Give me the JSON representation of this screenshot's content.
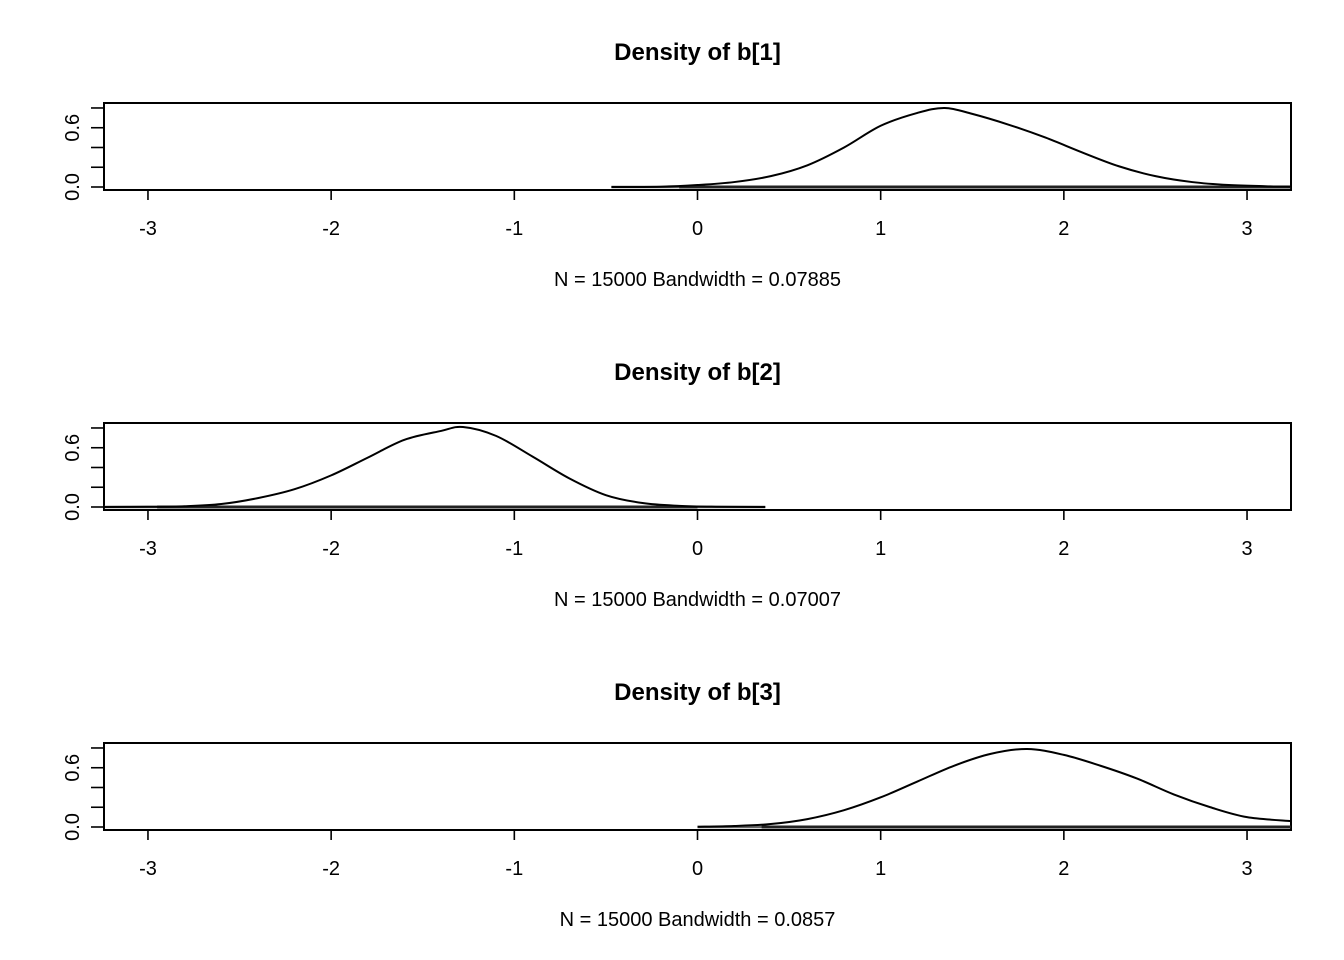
{
  "chart_data": [
    {
      "type": "line",
      "title": "Density of b[1]",
      "xlabel": "N = 15000   Bandwidth = 0.07885",
      "xlim": [
        -3.24,
        3.24
      ],
      "ylim": [
        0,
        0.82
      ],
      "x_ticks": [
        -3,
        -2,
        -1,
        0,
        1,
        2,
        3
      ],
      "x_tick_labels": [
        "-3",
        "-2",
        "-1",
        "0",
        "1",
        "2",
        "3"
      ],
      "y_ticks": [
        0,
        0.2,
        0.4,
        0.6,
        0.8
      ],
      "y_tick_labels": [
        "0.0",
        "",
        "",
        "0.6",
        ""
      ],
      "rug_range": [
        -0.47,
        3.24
      ],
      "rug_dense": [
        -0.1,
        3.24
      ],
      "series": [
        {
          "x": [
            -0.47,
            -0.2,
            0.0,
            0.2,
            0.4,
            0.6,
            0.8,
            1.0,
            1.2,
            1.35,
            1.5,
            1.7,
            1.9,
            2.1,
            2.3,
            2.5,
            2.7,
            2.9,
            3.1,
            3.24
          ],
          "y": [
            0.0,
            0.003,
            0.02,
            0.05,
            0.11,
            0.22,
            0.4,
            0.62,
            0.75,
            0.8,
            0.74,
            0.63,
            0.5,
            0.35,
            0.21,
            0.11,
            0.05,
            0.02,
            0.008,
            0.004
          ]
        }
      ]
    },
    {
      "type": "line",
      "title": "Density of b[2]",
      "xlabel": "N = 15000   Bandwidth = 0.07007",
      "xlim": [
        -3.24,
        3.24
      ],
      "ylim": [
        0,
        0.82
      ],
      "x_ticks": [
        -3,
        -2,
        -1,
        0,
        1,
        2,
        3
      ],
      "x_tick_labels": [
        "-3",
        "-2",
        "-1",
        "0",
        "1",
        "2",
        "3"
      ],
      "y_ticks": [
        0,
        0.2,
        0.4,
        0.6,
        0.8
      ],
      "y_tick_labels": [
        "0.0",
        "",
        "",
        "0.6",
        ""
      ],
      "rug_range": [
        -3.24,
        0.37
      ],
      "rug_dense": [
        -2.95,
        0.0
      ],
      "series": [
        {
          "x": [
            -3.24,
            -3.0,
            -2.8,
            -2.6,
            -2.4,
            -2.2,
            -2.0,
            -1.8,
            -1.6,
            -1.4,
            -1.28,
            -1.1,
            -0.9,
            -0.7,
            -0.5,
            -0.3,
            -0.1,
            0.1,
            0.37
          ],
          "y": [
            0.0,
            0.002,
            0.008,
            0.03,
            0.09,
            0.18,
            0.32,
            0.5,
            0.68,
            0.77,
            0.81,
            0.72,
            0.51,
            0.29,
            0.12,
            0.04,
            0.012,
            0.003,
            0.0
          ]
        }
      ]
    },
    {
      "type": "line",
      "title": "Density of b[3]",
      "xlabel": "N = 15000   Bandwidth = 0.0857",
      "xlim": [
        -3.24,
        3.24
      ],
      "ylim": [
        0,
        0.82
      ],
      "x_ticks": [
        -3,
        -2,
        -1,
        0,
        1,
        2,
        3
      ],
      "x_tick_labels": [
        "-3",
        "-2",
        "-1",
        "0",
        "1",
        "2",
        "3"
      ],
      "y_ticks": [
        0,
        0.2,
        0.4,
        0.6,
        0.8
      ],
      "y_tick_labels": [
        "0.0",
        "",
        "",
        "0.6",
        ""
      ],
      "rug_range": [
        0.0,
        3.24
      ],
      "rug_dense": [
        0.35,
        3.24
      ],
      "series": [
        {
          "x": [
            0.0,
            0.2,
            0.4,
            0.6,
            0.8,
            1.0,
            1.2,
            1.4,
            1.6,
            1.8,
            2.0,
            2.2,
            2.4,
            2.6,
            2.8,
            3.0,
            3.24
          ],
          "y": [
            0.002,
            0.01,
            0.03,
            0.08,
            0.17,
            0.3,
            0.46,
            0.62,
            0.74,
            0.79,
            0.73,
            0.62,
            0.49,
            0.33,
            0.2,
            0.1,
            0.06
          ]
        }
      ]
    }
  ]
}
